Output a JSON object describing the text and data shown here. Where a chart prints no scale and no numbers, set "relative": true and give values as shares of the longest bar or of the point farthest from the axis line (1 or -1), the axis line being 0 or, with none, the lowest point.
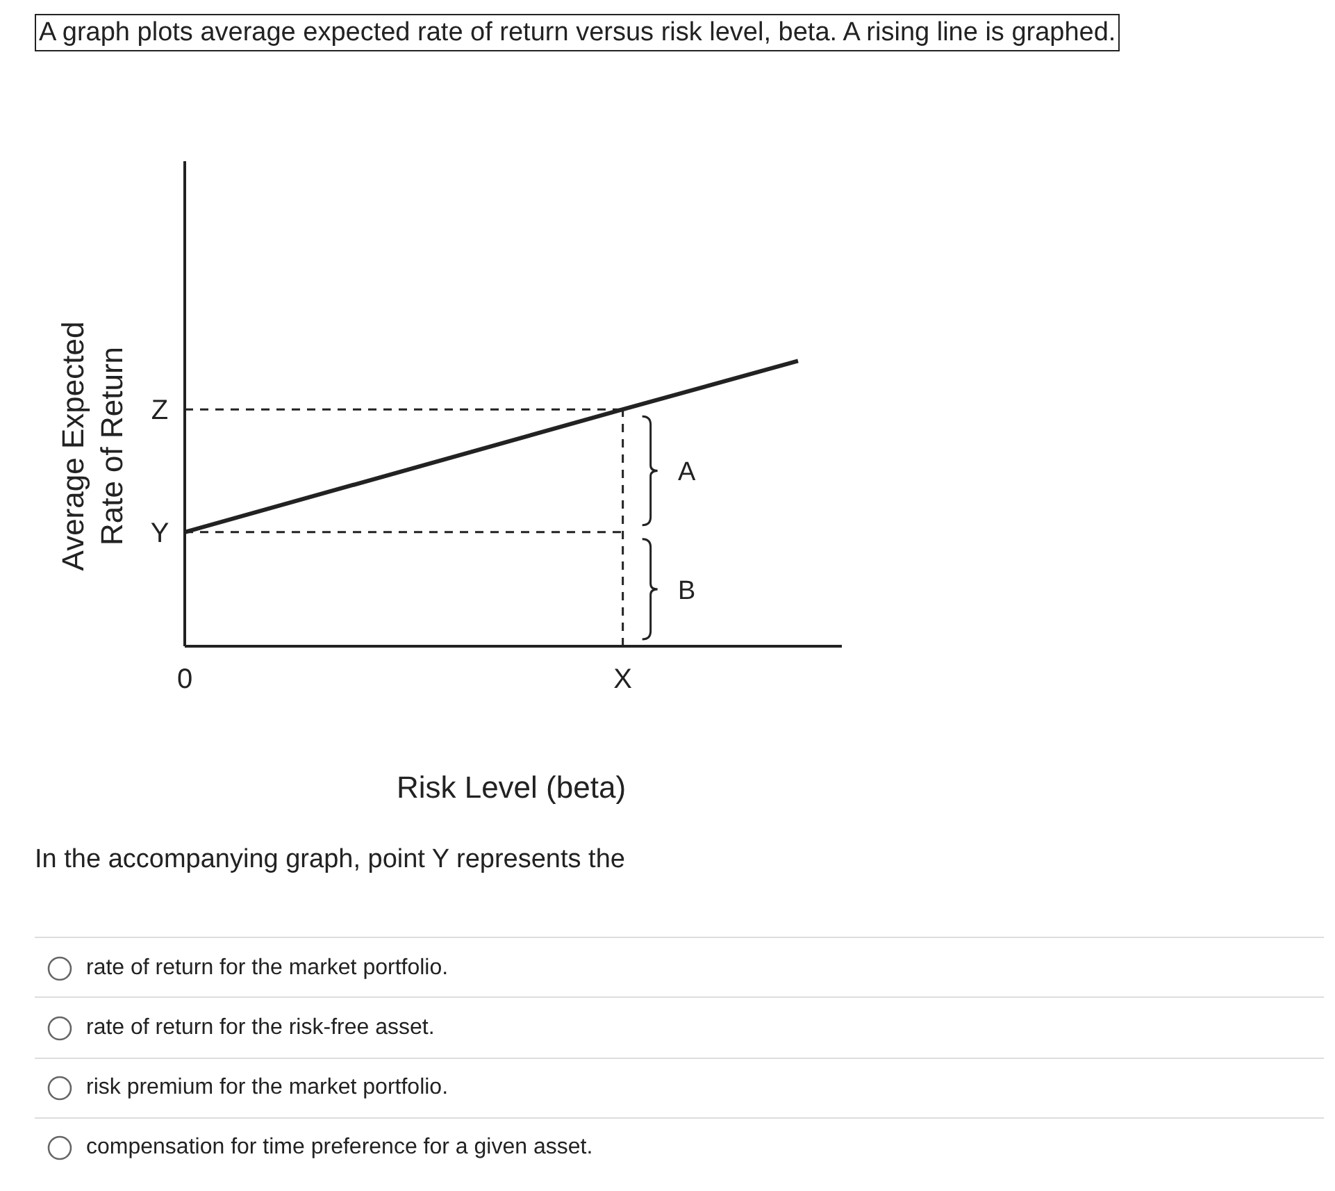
{
  "chart_data": {
    "type": "line",
    "title": "A graph plots average expected rate of return versus risk level, beta. A rising line is graphed.",
    "xlabel": "Risk Level (beta)",
    "ylabel": "Average Expected Rate of Return",
    "relative": true,
    "marker": "none",
    "categories": [
      "0",
      null,
      null,
      null,
      null,
      null,
      null,
      null,
      null,
      null,
      "X",
      null,
      null,
      null,
      null
    ],
    "series": [
      {
        "color": "#222222",
        "values": [
          0.4,
          null,
          null,
          null,
          null,
          null,
          null,
          null,
          null,
          null,
          0.83,
          null,
          null,
          null,
          1
        ],
        "line_style": "solid"
      },
      {
        "color": "#222222",
        "values": [
          0.83,
          null,
          null,
          null,
          null,
          null,
          null,
          null,
          null,
          null,
          0.83,
          null,
          null,
          null,
          null
        ],
        "line_style": "dashed"
      },
      {
        "color": "#222222",
        "values": [
          0.4,
          null,
          null,
          null,
          null,
          null,
          null,
          null,
          null,
          null,
          0.4,
          null,
          null,
          null,
          null
        ],
        "line_style": "dashed"
      }
    ],
    "ref_lines": [
      {
        "axis": "x",
        "value": "X",
        "line_style": "dashed",
        "color": "#222222"
      }
    ],
    "annotations": [
      "Z",
      "Y",
      "A",
      "B",
      "In the accompanying graph, point Y represents the",
      "rate of return for the market portfolio.",
      "rate of return for the risk-free asset.",
      "risk premium for the market portfolio.",
      "compensation for time preference for a given asset."
    ]
  }
}
